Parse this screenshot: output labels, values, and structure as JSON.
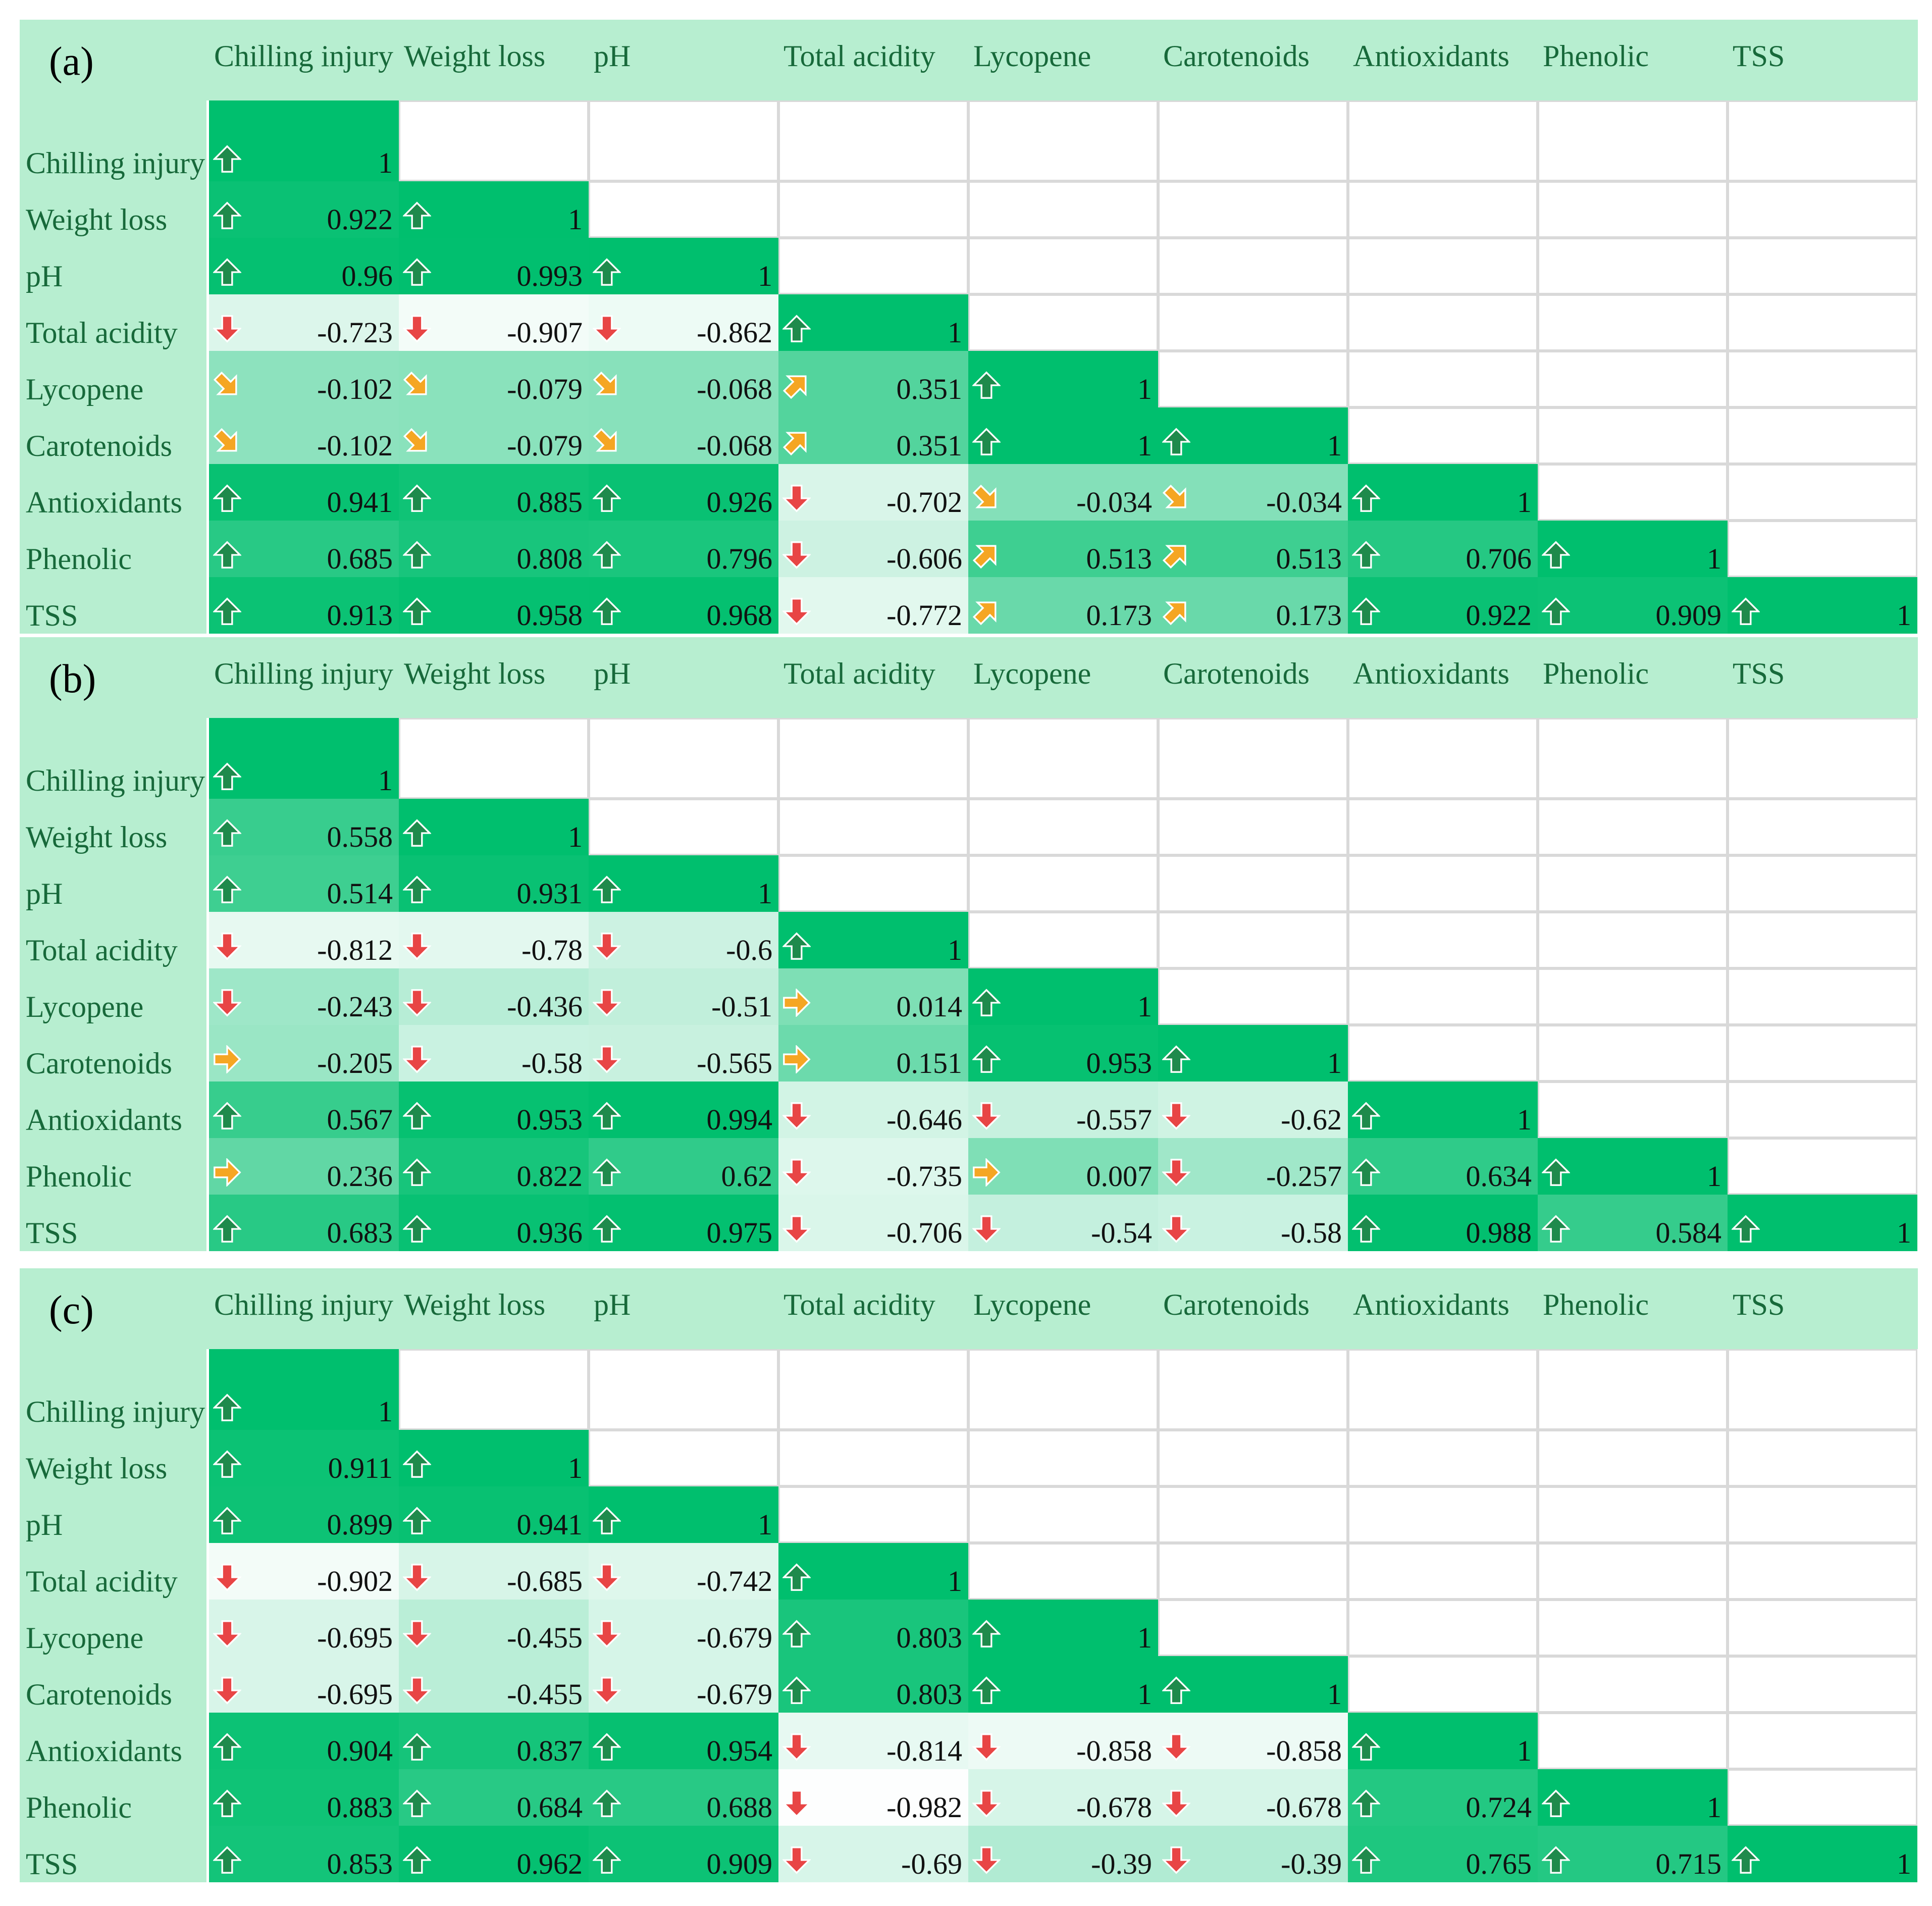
{
  "variables": [
    "Chilling injury",
    "Weight loss",
    "pH",
    "Total acidity",
    "Lycopene",
    "Carotenoids",
    "Antioxidants",
    "Phenolic",
    "TSS"
  ],
  "colors": {
    "header_bg": "#b7eed0",
    "label_text": "#17693a",
    "up": "#1f8a4c",
    "down": "#e84545",
    "neutral": "#f5a623"
  },
  "chart_data": [
    {
      "type": "table",
      "title": "(a)",
      "rows": [
        {
          "label": "Chilling injury",
          "cells": [
            {
              "v": "1",
              "d": "up"
            }
          ]
        },
        {
          "label": "Weight loss",
          "cells": [
            {
              "v": "0.922",
              "d": "up"
            },
            {
              "v": "1",
              "d": "up"
            }
          ]
        },
        {
          "label": "pH",
          "cells": [
            {
              "v": "0.96",
              "d": "up"
            },
            {
              "v": "0.993",
              "d": "up"
            },
            {
              "v": "1",
              "d": "up"
            }
          ]
        },
        {
          "label": "Total acidity",
          "cells": [
            {
              "v": "-0.723",
              "d": "down"
            },
            {
              "v": "-0.907",
              "d": "down"
            },
            {
              "v": "-0.862",
              "d": "down"
            },
            {
              "v": "1",
              "d": "up"
            }
          ]
        },
        {
          "label": "Lycopene",
          "cells": [
            {
              "v": "-0.102",
              "d": "diag-down"
            },
            {
              "v": "-0.079",
              "d": "diag-down"
            },
            {
              "v": "-0.068",
              "d": "diag-down"
            },
            {
              "v": "0.351",
              "d": "diag-up"
            },
            {
              "v": "1",
              "d": "up"
            }
          ]
        },
        {
          "label": "Carotenoids",
          "cells": [
            {
              "v": "-0.102",
              "d": "diag-down"
            },
            {
              "v": "-0.079",
              "d": "diag-down"
            },
            {
              "v": "-0.068",
              "d": "diag-down"
            },
            {
              "v": "0.351",
              "d": "diag-up"
            },
            {
              "v": "1",
              "d": "up"
            },
            {
              "v": "1",
              "d": "up"
            }
          ]
        },
        {
          "label": "Antioxidants",
          "cells": [
            {
              "v": "0.941",
              "d": "up"
            },
            {
              "v": "0.885",
              "d": "up"
            },
            {
              "v": "0.926",
              "d": "up"
            },
            {
              "v": "-0.702",
              "d": "down"
            },
            {
              "v": "-0.034",
              "d": "diag-down"
            },
            {
              "v": "-0.034",
              "d": "diag-down"
            },
            {
              "v": "1",
              "d": "up"
            }
          ]
        },
        {
          "label": "Phenolic",
          "cells": [
            {
              "v": "0.685",
              "d": "up"
            },
            {
              "v": "0.808",
              "d": "up"
            },
            {
              "v": "0.796",
              "d": "up"
            },
            {
              "v": "-0.606",
              "d": "down"
            },
            {
              "v": "0.513",
              "d": "diag-up"
            },
            {
              "v": "0.513",
              "d": "diag-up"
            },
            {
              "v": "0.706",
              "d": "up"
            },
            {
              "v": "1",
              "d": "up"
            }
          ]
        },
        {
          "label": "TSS",
          "cells": [
            {
              "v": "0.913",
              "d": "up"
            },
            {
              "v": "0.958",
              "d": "up"
            },
            {
              "v": "0.968",
              "d": "up"
            },
            {
              "v": "-0.772",
              "d": "down"
            },
            {
              "v": "0.173",
              "d": "diag-up"
            },
            {
              "v": "0.173",
              "d": "diag-up"
            },
            {
              "v": "0.922",
              "d": "up"
            },
            {
              "v": "0.909",
              "d": "up"
            },
            {
              "v": "1",
              "d": "up"
            }
          ]
        }
      ]
    },
    {
      "type": "table",
      "title": "(b)",
      "rows": [
        {
          "label": "Chilling injury",
          "cells": [
            {
              "v": "1",
              "d": "up"
            }
          ]
        },
        {
          "label": "Weight loss",
          "cells": [
            {
              "v": "0.558",
              "d": "up"
            },
            {
              "v": "1",
              "d": "up"
            }
          ]
        },
        {
          "label": "pH",
          "cells": [
            {
              "v": "0.514",
              "d": "up"
            },
            {
              "v": "0.931",
              "d": "up"
            },
            {
              "v": "1",
              "d": "up"
            }
          ]
        },
        {
          "label": "Total acidity",
          "cells": [
            {
              "v": "-0.812",
              "d": "down"
            },
            {
              "v": "-0.78",
              "d": "down"
            },
            {
              "v": "-0.6",
              "d": "down"
            },
            {
              "v": "1",
              "d": "up"
            }
          ]
        },
        {
          "label": "Lycopene",
          "cells": [
            {
              "v": "-0.243",
              "d": "down"
            },
            {
              "v": "-0.436",
              "d": "down"
            },
            {
              "v": "-0.51",
              "d": "down"
            },
            {
              "v": "0.014",
              "d": "right"
            },
            {
              "v": "1",
              "d": "up"
            }
          ]
        },
        {
          "label": "Carotenoids",
          "cells": [
            {
              "v": "-0.205",
              "d": "right"
            },
            {
              "v": "-0.58",
              "d": "down"
            },
            {
              "v": "-0.565",
              "d": "down"
            },
            {
              "v": "0.151",
              "d": "right"
            },
            {
              "v": "0.953",
              "d": "up"
            },
            {
              "v": "1",
              "d": "up"
            }
          ]
        },
        {
          "label": "Antioxidants",
          "cells": [
            {
              "v": "0.567",
              "d": "up"
            },
            {
              "v": "0.953",
              "d": "up"
            },
            {
              "v": "0.994",
              "d": "up"
            },
            {
              "v": "-0.646",
              "d": "down"
            },
            {
              "v": "-0.557",
              "d": "down"
            },
            {
              "v": "-0.62",
              "d": "down"
            },
            {
              "v": "1",
              "d": "up"
            }
          ]
        },
        {
          "label": "Phenolic",
          "cells": [
            {
              "v": "0.236",
              "d": "right"
            },
            {
              "v": "0.822",
              "d": "up"
            },
            {
              "v": "0.62",
              "d": "up"
            },
            {
              "v": "-0.735",
              "d": "down"
            },
            {
              "v": "0.007",
              "d": "right"
            },
            {
              "v": "-0.257",
              "d": "down"
            },
            {
              "v": "0.634",
              "d": "up"
            },
            {
              "v": "1",
              "d": "up"
            }
          ]
        },
        {
          "label": "TSS",
          "cells": [
            {
              "v": "0.683",
              "d": "up"
            },
            {
              "v": "0.936",
              "d": "up"
            },
            {
              "v": "0.975",
              "d": "up"
            },
            {
              "v": "-0.706",
              "d": "down"
            },
            {
              "v": "-0.54",
              "d": "down"
            },
            {
              "v": "-0.58",
              "d": "down"
            },
            {
              "v": "0.988",
              "d": "up"
            },
            {
              "v": "0.584",
              "d": "up"
            },
            {
              "v": "1",
              "d": "up"
            }
          ]
        }
      ]
    },
    {
      "type": "table",
      "title": "(c)",
      "rows": [
        {
          "label": "Chilling injury",
          "cells": [
            {
              "v": "1",
              "d": "up"
            }
          ]
        },
        {
          "label": "Weight loss",
          "cells": [
            {
              "v": "0.911",
              "d": "up"
            },
            {
              "v": "1",
              "d": "up"
            }
          ]
        },
        {
          "label": "pH",
          "cells": [
            {
              "v": "0.899",
              "d": "up"
            },
            {
              "v": "0.941",
              "d": "up"
            },
            {
              "v": "1",
              "d": "up"
            }
          ]
        },
        {
          "label": "Total acidity",
          "cells": [
            {
              "v": "-0.902",
              "d": "down"
            },
            {
              "v": "-0.685",
              "d": "down"
            },
            {
              "v": "-0.742",
              "d": "down"
            },
            {
              "v": "1",
              "d": "up"
            }
          ]
        },
        {
          "label": "Lycopene",
          "cells": [
            {
              "v": "-0.695",
              "d": "down"
            },
            {
              "v": "-0.455",
              "d": "down"
            },
            {
              "v": "-0.679",
              "d": "down"
            },
            {
              "v": "0.803",
              "d": "up"
            },
            {
              "v": "1",
              "d": "up"
            }
          ]
        },
        {
          "label": "Carotenoids",
          "cells": [
            {
              "v": "-0.695",
              "d": "down"
            },
            {
              "v": "-0.455",
              "d": "down"
            },
            {
              "v": "-0.679",
              "d": "down"
            },
            {
              "v": "0.803",
              "d": "up"
            },
            {
              "v": "1",
              "d": "up"
            },
            {
              "v": "1",
              "d": "up"
            }
          ]
        },
        {
          "label": "Antioxidants",
          "cells": [
            {
              "v": "0.904",
              "d": "up"
            },
            {
              "v": "0.837",
              "d": "up"
            },
            {
              "v": "0.954",
              "d": "up"
            },
            {
              "v": "-0.814",
              "d": "down"
            },
            {
              "v": "-0.858",
              "d": "down"
            },
            {
              "v": "-0.858",
              "d": "down"
            },
            {
              "v": "1",
              "d": "up"
            }
          ]
        },
        {
          "label": "Phenolic",
          "cells": [
            {
              "v": "0.883",
              "d": "up"
            },
            {
              "v": "0.684",
              "d": "up"
            },
            {
              "v": "0.688",
              "d": "up"
            },
            {
              "v": "-0.982",
              "d": "down"
            },
            {
              "v": "-0.678",
              "d": "down"
            },
            {
              "v": "-0.678",
              "d": "down"
            },
            {
              "v": "0.724",
              "d": "up"
            },
            {
              "v": "1",
              "d": "up"
            }
          ]
        },
        {
          "label": "TSS",
          "cells": [
            {
              "v": "0.853",
              "d": "up"
            },
            {
              "v": "0.962",
              "d": "up"
            },
            {
              "v": "0.909",
              "d": "up"
            },
            {
              "v": "-0.69",
              "d": "down"
            },
            {
              "v": "-0.39",
              "d": "down"
            },
            {
              "v": "-0.39",
              "d": "down"
            },
            {
              "v": "0.765",
              "d": "up"
            },
            {
              "v": "0.715",
              "d": "up"
            },
            {
              "v": "1",
              "d": "up"
            }
          ]
        }
      ]
    }
  ]
}
